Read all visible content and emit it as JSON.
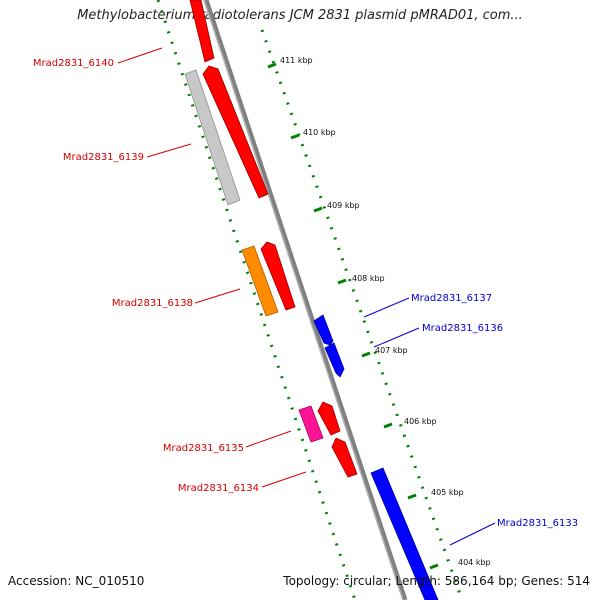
{
  "title": "Methylobacterium radiotolerans JCM 2831 plasmid pMRAD01, com...",
  "footer": {
    "accession": "Accession: NC_010510",
    "summary": "Topology: circular; Length: 586,164 bp; Genes: 514"
  },
  "ticks": [
    "411 kbp",
    "410 kbp",
    "409 kbp",
    "408 kbp",
    "407 kbp",
    "406 kbp",
    "405 kbp",
    "404 kbp"
  ],
  "colors": {
    "forward_cds": "#ff0000",
    "reverse_cds": "#0000ff",
    "other_gray": "#c0c0c0",
    "other_orange": "#ff8c00",
    "other_pink": "#ff1493",
    "backbone": "#808080",
    "tick": "#008000",
    "label_forward": "#d40000",
    "label_reverse": "#0000cc"
  },
  "genes": {
    "forward": [
      {
        "id": "Mrad2831_6140",
        "label": "Mrad2831_6140"
      },
      {
        "id": "Mrad2831_6139",
        "label": "Mrad2831_6139"
      },
      {
        "id": "Mrad2831_6138",
        "label": "Mrad2831_6138"
      },
      {
        "id": "Mrad2831_6135",
        "label": "Mrad2831_6135"
      },
      {
        "id": "Mrad2831_6134",
        "label": "Mrad2831_6134"
      }
    ],
    "reverse": [
      {
        "id": "Mrad2831_6137",
        "label": "Mrad2831_6137"
      },
      {
        "id": "Mrad2831_6136",
        "label": "Mrad2831_6136"
      },
      {
        "id": "Mrad2831_6133",
        "label": "Mrad2831_6133"
      }
    ]
  }
}
